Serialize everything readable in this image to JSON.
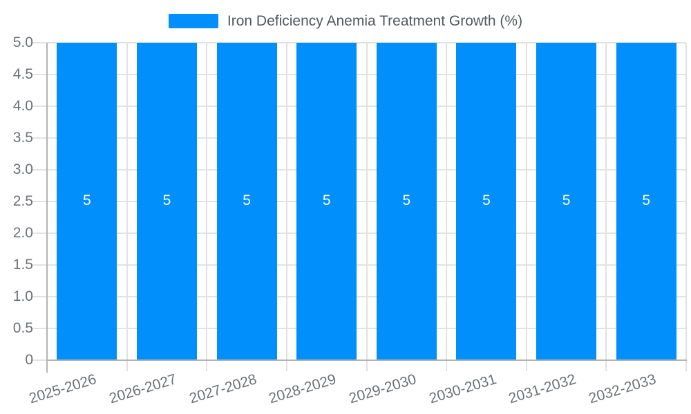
{
  "chart_data": {
    "type": "bar",
    "title": "Iron Deficiency Anemia Treatment Growth (%)",
    "categories": [
      "2025-2026",
      "2026-2027",
      "2027-2028",
      "2028-2029",
      "2029-2030",
      "2030-2031",
      "2031-2032",
      "2032-2033"
    ],
    "values": [
      5,
      5,
      5,
      5,
      5,
      5,
      5,
      5
    ],
    "data_labels": [
      "5",
      "5",
      "5",
      "5",
      "5",
      "5",
      "5",
      "5"
    ],
    "series": [
      {
        "name": "Iron Deficiency Anemia Treatment Growth (%)",
        "values": [
          5,
          5,
          5,
          5,
          5,
          5,
          5,
          5
        ]
      }
    ],
    "xlabel": "",
    "ylabel": "",
    "ylim": [
      0,
      5
    ],
    "ytick_step": 0.5,
    "ytick_labels": [
      "0",
      "0.5",
      "1.0",
      "1.5",
      "2.0",
      "2.5",
      "3.0",
      "3.5",
      "4.0",
      "4.5",
      "5.0"
    ],
    "grid": true,
    "legend_position": "top",
    "colors": {
      "bar": "#008FFB",
      "grid": "#e2e2e2",
      "axis": "#b3b3b3",
      "tick_label": "#6e7174",
      "legend_text": "#55585b",
      "data_label": "#ffffff",
      "background": "#ffffff"
    }
  }
}
